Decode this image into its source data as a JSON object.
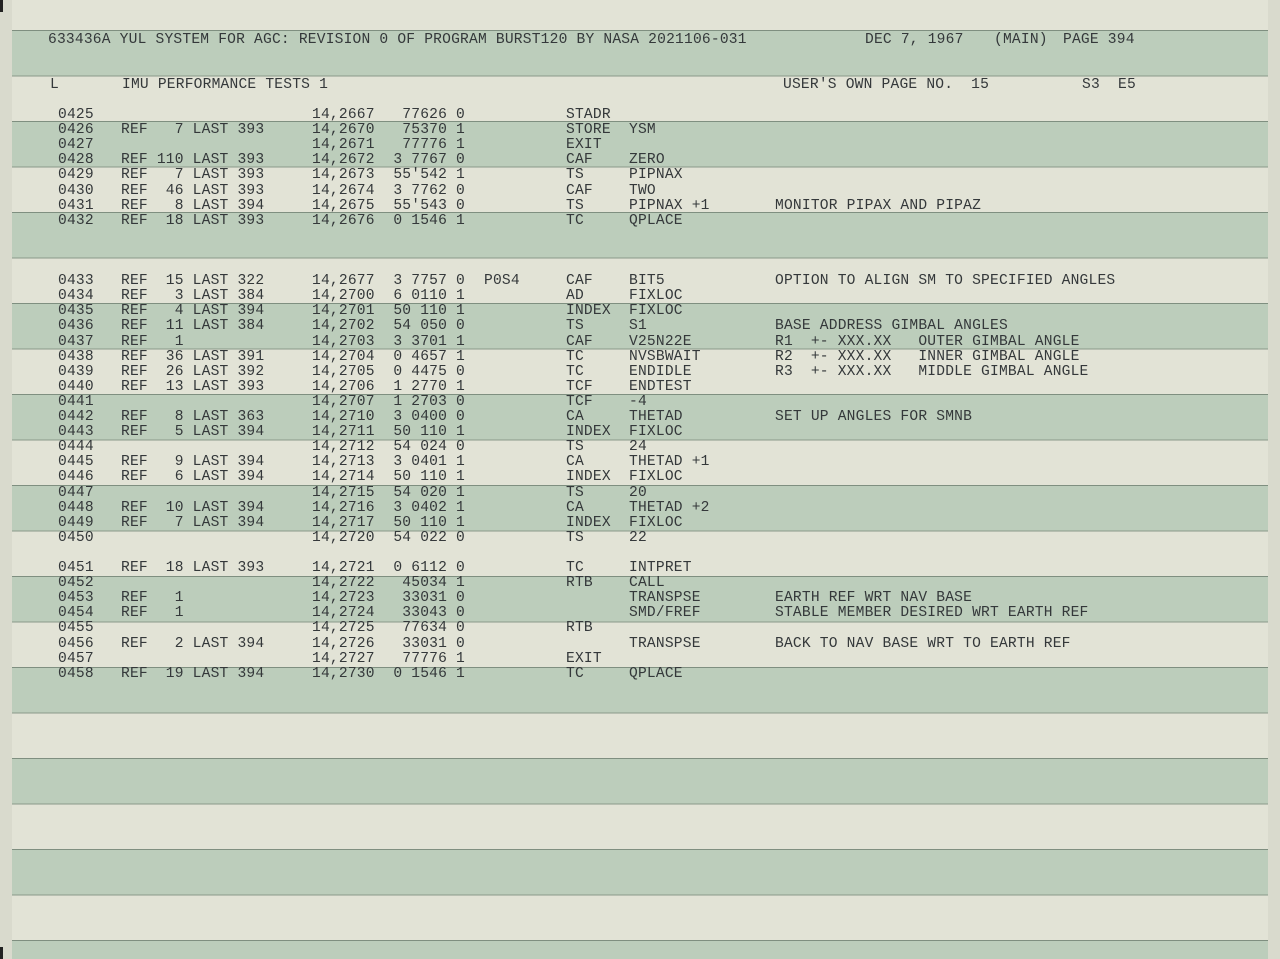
{
  "header": {
    "title": "633436A YUL SYSTEM FOR AGC: REVISION 0 OF PROGRAM BURST120 BY NASA 2021106-031",
    "date": "DEC 7, 1967",
    "section": "(MAIN)",
    "page": "PAGE 394",
    "log_marker": "L",
    "log_title": "IMU PERFORMANCE TESTS 1",
    "user_page": "USER'S OWN PAGE NO.  15",
    "s_code": "S3",
    "e_code": "E5"
  },
  "colors": {
    "green_band": "#bccdbb",
    "paper": "#e2e3d6",
    "ink": "#34383a"
  },
  "rows": [
    {
      "line": 0,
      "seq": "0425",
      "ref": "",
      "addr": "14,2667",
      "word": "77626 0",
      "label": "",
      "op": "STADR",
      "operand": "",
      "comment": ""
    },
    {
      "line": 1,
      "seq": "0426",
      "ref": "REF   7 LAST 393",
      "addr": "14,2670",
      "word": "75370 1",
      "label": "",
      "op": "STORE",
      "operand": "YSM",
      "comment": ""
    },
    {
      "line": 2,
      "seq": "0427",
      "ref": "",
      "addr": "14,2671",
      "word": "77776 1",
      "label": "",
      "op": "EXIT",
      "operand": "",
      "comment": ""
    },
    {
      "line": 3,
      "seq": "0428",
      "ref": "REF 110 LAST 393",
      "addr": "14,2672",
      "word": "3 7767 0",
      "label": "",
      "op": "CAF",
      "operand": "ZERO",
      "comment": ""
    },
    {
      "line": 4,
      "seq": "0429",
      "ref": "REF   7 LAST 393",
      "addr": "14,2673",
      "word": "55'542 1",
      "label": "",
      "op": "TS",
      "operand": "PIPNAX",
      "comment": ""
    },
    {
      "line": 5,
      "seq": "0430",
      "ref": "REF  46 LAST 393",
      "addr": "14,2674",
      "word": "3 7762 0",
      "label": "",
      "op": "CAF",
      "operand": "TWO",
      "comment": ""
    },
    {
      "line": 6,
      "seq": "0431",
      "ref": "REF   8 LAST 394",
      "addr": "14,2675",
      "word": "55'543 0",
      "label": "",
      "op": "TS",
      "operand": "PIPNAX +1",
      "comment": "MONITOR PIPAX AND PIPAZ"
    },
    {
      "line": 7,
      "seq": "0432",
      "ref": "REF  18 LAST 393",
      "addr": "14,2676",
      "word": "0 1546 1",
      "label": "",
      "op": "TC",
      "operand": "QPLACE",
      "comment": ""
    },
    {
      "line": 11,
      "seq": "0433",
      "ref": "REF  15 LAST 322",
      "addr": "14,2677",
      "word": "3 7757 0",
      "label": "P0S4",
      "op": "CAF",
      "operand": "BIT5",
      "comment": "OPTION TO ALIGN SM TO SPECIFIED ANGLES"
    },
    {
      "line": 12,
      "seq": "0434",
      "ref": "REF   3 LAST 384",
      "addr": "14,2700",
      "word": "6 0110 1",
      "label": "",
      "op": "AD",
      "operand": "FIXLOC",
      "comment": ""
    },
    {
      "line": 13,
      "seq": "0435",
      "ref": "REF   4 LAST 394",
      "addr": "14,2701",
      "word": "50 110 1",
      "label": "",
      "op": "INDEX",
      "operand": "FIXLOC",
      "comment": ""
    },
    {
      "line": 14,
      "seq": "0436",
      "ref": "REF  11 LAST 384",
      "addr": "14,2702",
      "word": "54 050 0",
      "label": "",
      "op": "TS",
      "operand": "S1",
      "comment": "BASE ADDRESS GIMBAL ANGLES"
    },
    {
      "line": 15,
      "seq": "0437",
      "ref": "REF   1",
      "addr": "14,2703",
      "word": "3 3701 1",
      "label": "",
      "op": "CAF",
      "operand": "V25N22E",
      "comment": "R1  +- XXX.XX   OUTER GIMBAL ANGLE"
    },
    {
      "line": 16,
      "seq": "0438",
      "ref": "REF  36 LAST 391",
      "addr": "14,2704",
      "word": "0 4657 1",
      "label": "",
      "op": "TC",
      "operand": "NVSBWAIT",
      "comment": "R2  +- XXX.XX   INNER GIMBAL ANGLE"
    },
    {
      "line": 17,
      "seq": "0439",
      "ref": "REF  26 LAST 392",
      "addr": "14,2705",
      "word": "0 4475 0",
      "label": "",
      "op": "TC",
      "operand": "ENDIDLE",
      "comment": "R3  +- XXX.XX   MIDDLE GIMBAL ANGLE"
    },
    {
      "line": 18,
      "seq": "0440",
      "ref": "REF  13 LAST 393",
      "addr": "14,2706",
      "word": "1 2770 1",
      "label": "",
      "op": "TCF",
      "operand": "ENDTEST",
      "comment": ""
    },
    {
      "line": 19,
      "seq": "0441",
      "ref": "",
      "addr": "14,2707",
      "word": "1 2703 0",
      "label": "",
      "op": "TCF",
      "operand": "-4",
      "comment": ""
    },
    {
      "line": 20,
      "seq": "0442",
      "ref": "REF   8 LAST 363",
      "addr": "14,2710",
      "word": "3 0400 0",
      "label": "",
      "op": "CA",
      "operand": "THETAD",
      "comment": "SET UP ANGLES FOR SMNB"
    },
    {
      "line": 21,
      "seq": "0443",
      "ref": "REF   5 LAST 394",
      "addr": "14,2711",
      "word": "50 110 1",
      "label": "",
      "op": "INDEX",
      "operand": "FIXLOC",
      "comment": ""
    },
    {
      "line": 22,
      "seq": "0444",
      "ref": "",
      "addr": "14,2712",
      "word": "54 024 0",
      "label": "",
      "op": "TS",
      "operand": "24",
      "comment": ""
    },
    {
      "line": 23,
      "seq": "0445",
      "ref": "REF   9 LAST 394",
      "addr": "14,2713",
      "word": "3 0401 1",
      "label": "",
      "op": "CA",
      "operand": "THETAD +1",
      "comment": ""
    },
    {
      "line": 24,
      "seq": "0446",
      "ref": "REF   6 LAST 394",
      "addr": "14,2714",
      "word": "50 110 1",
      "label": "",
      "op": "INDEX",
      "operand": "FIXLOC",
      "comment": ""
    },
    {
      "line": 25,
      "seq": "0447",
      "ref": "",
      "addr": "14,2715",
      "word": "54 020 1",
      "label": "",
      "op": "TS",
      "operand": "20",
      "comment": ""
    },
    {
      "line": 26,
      "seq": "0448",
      "ref": "REF  10 LAST 394",
      "addr": "14,2716",
      "word": "3 0402 1",
      "label": "",
      "op": "CA",
      "operand": "THETAD +2",
      "comment": ""
    },
    {
      "line": 27,
      "seq": "0449",
      "ref": "REF   7 LAST 394",
      "addr": "14,2717",
      "word": "50 110 1",
      "label": "",
      "op": "INDEX",
      "operand": "FIXLOC",
      "comment": ""
    },
    {
      "line": 28,
      "seq": "0450",
      "ref": "",
      "addr": "14,2720",
      "word": "54 022 0",
      "label": "",
      "op": "TS",
      "operand": "22",
      "comment": ""
    },
    {
      "line": 30,
      "seq": "0451",
      "ref": "REF  18 LAST 393",
      "addr": "14,2721",
      "word": "0 6112 0",
      "label": "",
      "op": "TC",
      "operand": "INTPRET",
      "comment": ""
    },
    {
      "line": 31,
      "seq": "0452",
      "ref": "",
      "addr": "14,2722",
      "word": "45034 1",
      "label": "",
      "op": "RTB",
      "operand": "CALL",
      "comment": ""
    },
    {
      "line": 32,
      "seq": "0453",
      "ref": "REF   1",
      "addr": "14,2723",
      "word": "33031 0",
      "label": "",
      "op": "",
      "operand": "TRANSPSE",
      "comment": "EARTH REF WRT NAV BASE"
    },
    {
      "line": 33,
      "seq": "0454",
      "ref": "REF   1",
      "addr": "14,2724",
      "word": "33043 0",
      "label": "",
      "op": "",
      "operand": "SMD/FREF",
      "comment": "STABLE MEMBER DESIRED WRT EARTH REF"
    },
    {
      "line": 34,
      "seq": "0455",
      "ref": "",
      "addr": "14,2725",
      "word": "77634 0",
      "label": "",
      "op": "RTB",
      "operand": "",
      "comment": ""
    },
    {
      "line": 35,
      "seq": "0456",
      "ref": "REF   2 LAST 394",
      "addr": "14,2726",
      "word": "33031 0",
      "label": "",
      "op": "",
      "operand": "TRANSPSE",
      "comment": "BACK TO NAV BASE WRT TO EARTH REF"
    },
    {
      "line": 36,
      "seq": "0457",
      "ref": "",
      "addr": "14,2727",
      "word": "77776 1",
      "label": "",
      "op": "EXIT",
      "operand": "",
      "comment": ""
    },
    {
      "line": 37,
      "seq": "0458",
      "ref": "REF  19 LAST 394",
      "addr": "14,2730",
      "word": "0 1546 1",
      "label": "",
      "op": "TC",
      "operand": "QPLACE",
      "comment": ""
    }
  ]
}
